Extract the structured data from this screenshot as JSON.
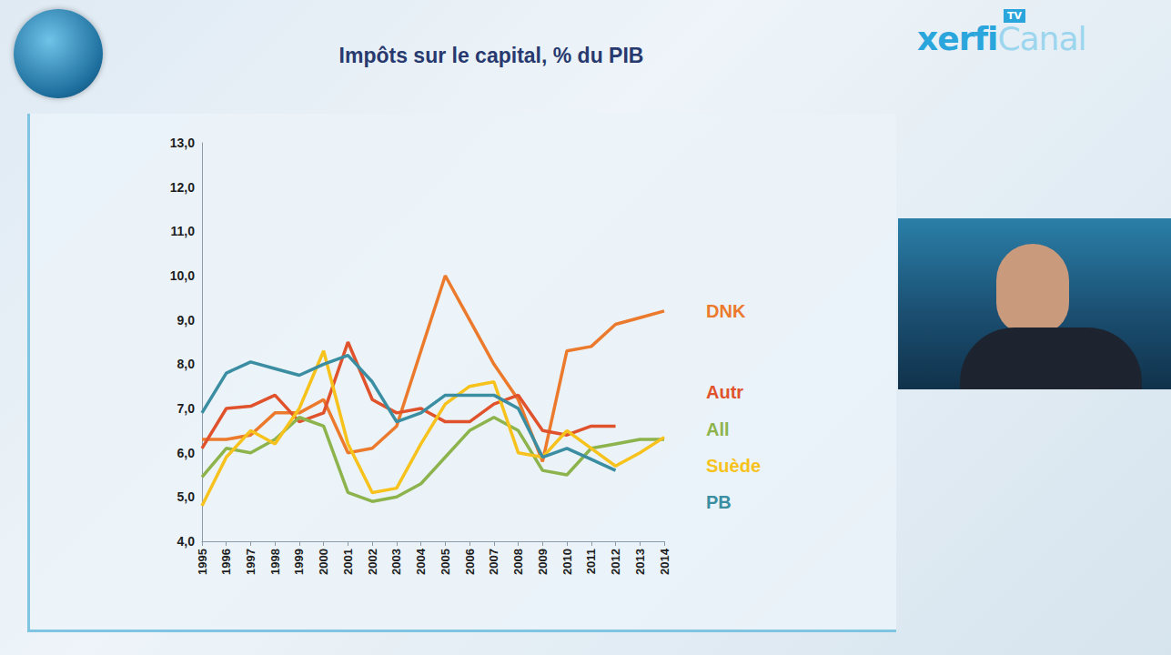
{
  "brand": {
    "name": "xerfi",
    "suffix": "Canal",
    "badge": "TV"
  },
  "chart_data": {
    "type": "line",
    "title": "Impôts sur le capital, % du PIB",
    "categories": [
      "1995",
      "1996",
      "1997",
      "1998",
      "1999",
      "2000",
      "2001",
      "2002",
      "2003",
      "2004",
      "2005",
      "2006",
      "2007",
      "2008",
      "2009",
      "2010",
      "2011",
      "2012",
      "2013",
      "2014"
    ],
    "series": [
      {
        "name": "DNK",
        "color": "#ec7a2c",
        "values": [
          6.3,
          6.3,
          6.4,
          6.9,
          6.9,
          7.2,
          6.0,
          6.1,
          6.6,
          8.3,
          10.0,
          9.0,
          8.0,
          7.2,
          5.8,
          8.3,
          8.4,
          8.9,
          9.05,
          9.2
        ]
      },
      {
        "name": "Autr",
        "color": "#e0522b",
        "values": [
          6.1,
          7.0,
          7.05,
          7.3,
          6.7,
          6.9,
          8.5,
          7.2,
          6.9,
          7.0,
          6.7,
          6.7,
          7.1,
          7.3,
          6.5,
          6.4,
          6.6,
          6.6,
          null,
          null
        ]
      },
      {
        "name": "All",
        "color": "#8db34c",
        "values": [
          5.45,
          6.1,
          6.0,
          6.3,
          6.8,
          6.6,
          5.1,
          4.9,
          5.0,
          5.3,
          5.9,
          6.5,
          6.8,
          6.5,
          5.6,
          5.5,
          6.1,
          6.2,
          6.3,
          6.3
        ]
      },
      {
        "name": "Suède",
        "color": "#f7c21c",
        "values": [
          4.8,
          5.9,
          6.5,
          6.2,
          7.0,
          8.3,
          6.2,
          5.1,
          5.2,
          6.2,
          7.1,
          7.5,
          7.6,
          6.0,
          5.9,
          6.5,
          6.1,
          5.7,
          6.0,
          6.35
        ]
      },
      {
        "name": "PB",
        "color": "#3b8ea2",
        "values": [
          6.9,
          7.8,
          8.05,
          7.9,
          7.75,
          8.0,
          8.2,
          7.6,
          6.7,
          6.9,
          7.3,
          7.3,
          7.3,
          7.0,
          5.9,
          6.1,
          5.85,
          5.6,
          null,
          null
        ]
      }
    ],
    "ylim": [
      4,
      13
    ],
    "yticks": [
      {
        "value": 4,
        "label": "4,0"
      },
      {
        "value": 5,
        "label": "5,0"
      },
      {
        "value": 6,
        "label": "6,0"
      },
      {
        "value": 7,
        "label": "7,0"
      },
      {
        "value": 8,
        "label": "8,0"
      },
      {
        "value": 9,
        "label": "9,0"
      },
      {
        "value": 10,
        "label": "10,0"
      },
      {
        "value": 11,
        "label": "11,0"
      },
      {
        "value": 12,
        "label": "12,0"
      },
      {
        "value": 13,
        "label": "13,0"
      }
    ],
    "grid": false,
    "legend": "right"
  }
}
